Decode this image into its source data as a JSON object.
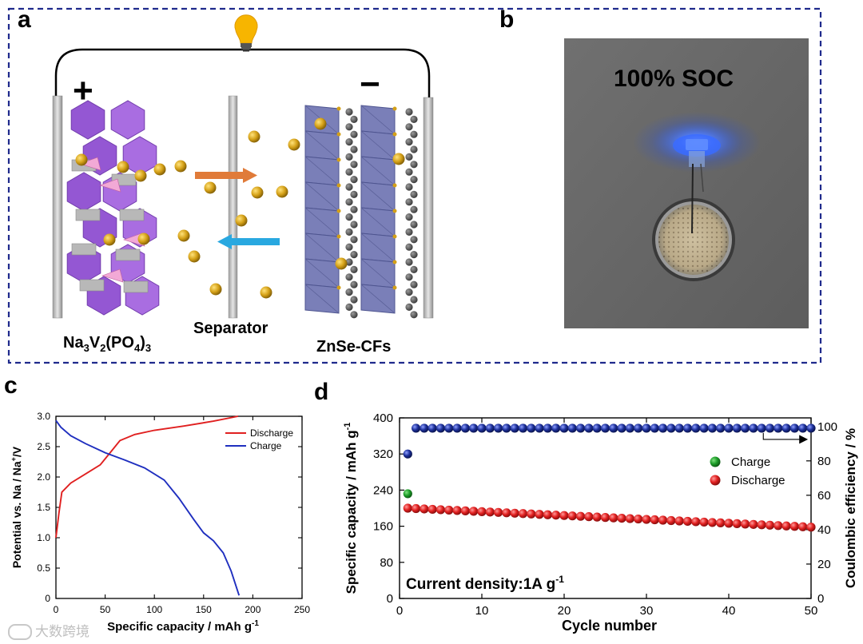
{
  "figure": {
    "panel_a": {
      "letter": "a",
      "plus_sign": "+",
      "minus_sign": "−",
      "cathode_label_parts": [
        "Na",
        "3",
        "V",
        "2",
        "(PO",
        "4",
        ")",
        "3"
      ],
      "separator_label": "Separator",
      "anode_label": "ZnSe-CFs",
      "colors": {
        "frame": "#1f2a8c",
        "polyhedra": "#9b59d9",
        "octa": "#7a7fb8",
        "sodium": "#d4a017",
        "charge_arrow": "#e07b39",
        "discharge_arrow": "#29a8e0"
      }
    },
    "panel_b": {
      "letter": "b",
      "photo_label": "100% SOC",
      "colors": {
        "background": "#6b6b6b",
        "led": "#3a6bff"
      }
    },
    "panel_c": {
      "letter": "c"
    },
    "panel_d": {
      "letter": "d"
    },
    "watermark": "大数跨境"
  },
  "chart_data": [
    {
      "type": "line",
      "panel": "c",
      "xlabel_main": "Specific capacity / mAh g",
      "xlabel_sup": "-1",
      "ylabel_parts": [
        "Potential vs. Na / Na",
        "+",
        "/V"
      ],
      "xlim": [
        0,
        250
      ],
      "ylim": [
        0,
        3.0
      ],
      "xticks": [
        "0",
        "50",
        "100",
        "150",
        "200",
        "250"
      ],
      "yticks": [
        "0",
        "0.5",
        "1.0",
        "1.5",
        "2.0",
        "2.5",
        "3.0"
      ],
      "legend_position": "top-right",
      "series": [
        {
          "name": "Discharge",
          "color": "#e02020",
          "points": [
            [
              0,
              1.0
            ],
            [
              3,
              1.4
            ],
            [
              6,
              1.75
            ],
            [
              15,
              1.9
            ],
            [
              30,
              2.05
            ],
            [
              45,
              2.2
            ],
            [
              55,
              2.4
            ],
            [
              65,
              2.6
            ],
            [
              80,
              2.7
            ],
            [
              100,
              2.77
            ],
            [
              130,
              2.84
            ],
            [
              160,
              2.92
            ],
            [
              185,
              3.0
            ]
          ]
        },
        {
          "name": "Charge",
          "color": "#1f2fbf",
          "points": [
            [
              0,
              2.93
            ],
            [
              5,
              2.82
            ],
            [
              15,
              2.68
            ],
            [
              30,
              2.55
            ],
            [
              50,
              2.4
            ],
            [
              70,
              2.28
            ],
            [
              90,
              2.15
            ],
            [
              110,
              1.95
            ],
            [
              125,
              1.65
            ],
            [
              140,
              1.3
            ],
            [
              150,
              1.08
            ],
            [
              160,
              0.95
            ],
            [
              170,
              0.75
            ],
            [
              178,
              0.45
            ],
            [
              184,
              0.15
            ],
            [
              186,
              0.05
            ]
          ]
        }
      ]
    },
    {
      "type": "scatter",
      "panel": "d",
      "xlabel": "Cycle number",
      "ylabel_left_main": "Specific capacity / mAh g",
      "ylabel_left_sup": "-1",
      "ylabel_right": "Coulombic efficiency / %",
      "xlim": [
        0,
        50
      ],
      "ylim_left": [
        0,
        400
      ],
      "ylim_right": [
        0,
        105
      ],
      "xticks": [
        "0",
        "10",
        "20",
        "30",
        "40",
        "50"
      ],
      "yticks_left": [
        "0",
        "80",
        "160",
        "240",
        "320",
        "400"
      ],
      "yticks_right": [
        "0",
        "20",
        "40",
        "60",
        "80",
        "100"
      ],
      "annotation_main": "Current density:1A g",
      "annotation_sup": "-1",
      "legend_position": "right",
      "series": [
        {
          "name": "Charge",
          "color": "#1e9e2a",
          "axis": "left",
          "values": [
            232
          ]
        },
        {
          "name": "Discharge",
          "color": "#e22020",
          "axis": "left",
          "first_value": 200,
          "last_value": 158,
          "count": 50
        },
        {
          "name": "Coulombic efficiency",
          "color": "#1c2f9a",
          "axis": "right",
          "first_value": 84,
          "plateau_value": 99,
          "count": 50
        }
      ]
    }
  ]
}
